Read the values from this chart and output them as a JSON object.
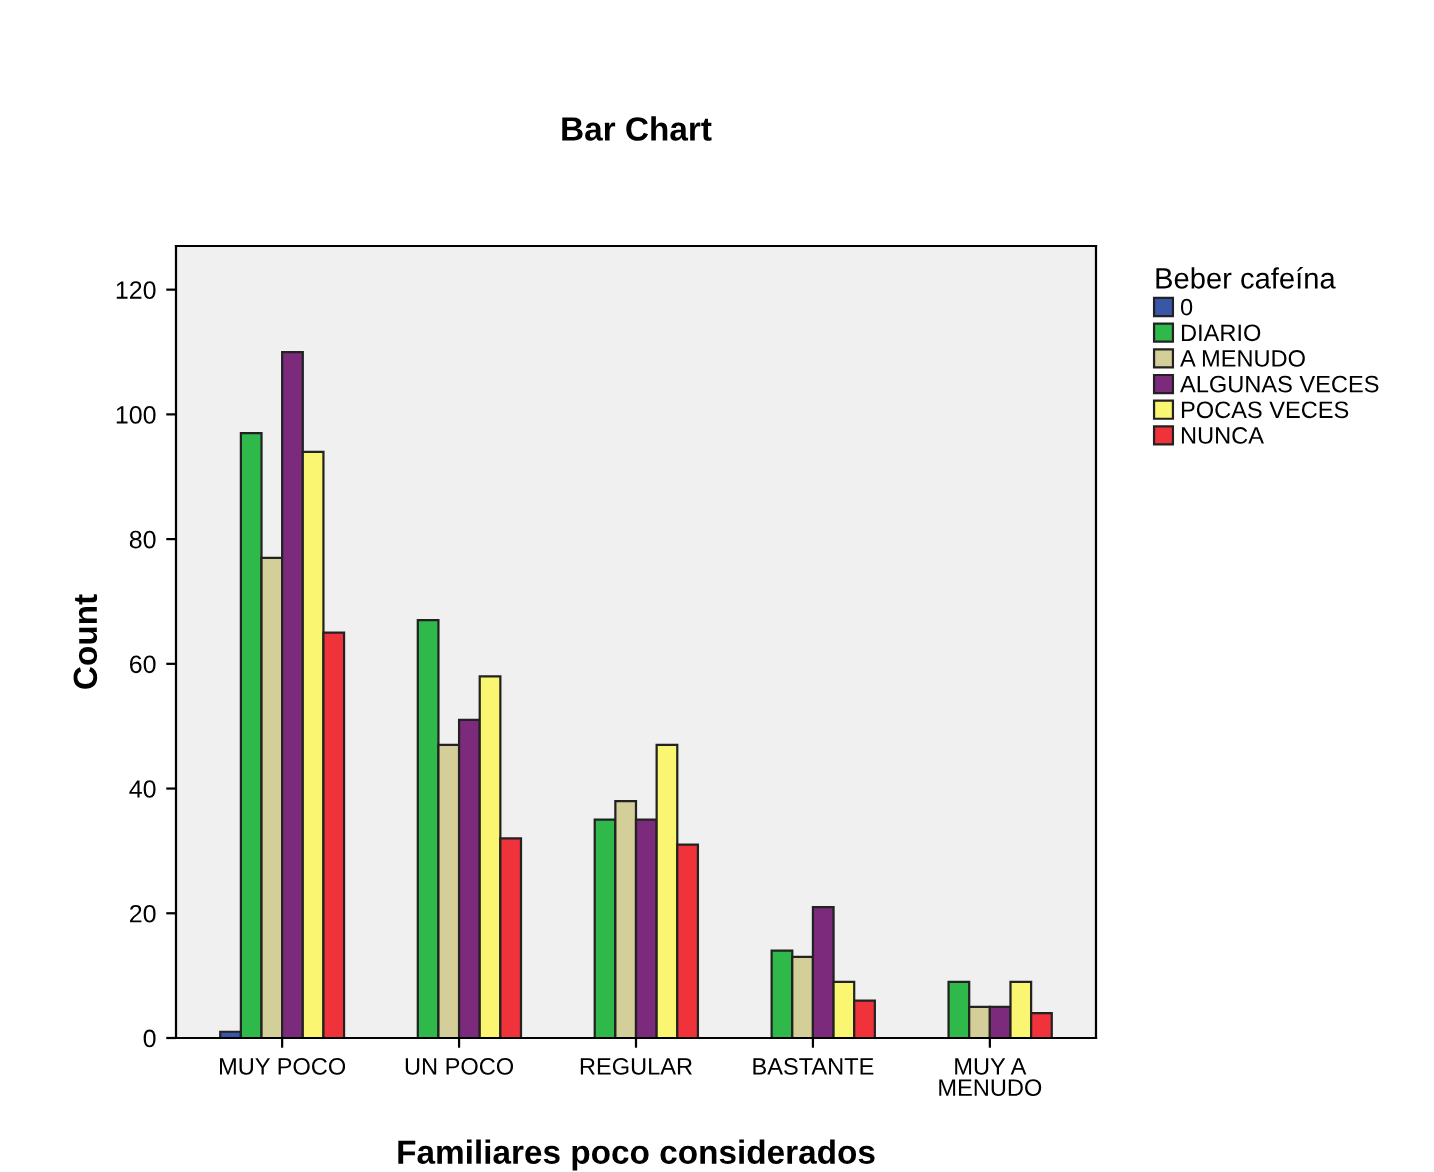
{
  "chart_data": {
    "type": "bar",
    "title": "Bar Chart",
    "xlabel": "Familiares poco considerados",
    "ylabel": "Count",
    "legend_title": "Beber cafeína",
    "legend": "right",
    "categories": [
      "MUY POCO",
      "UN POCO",
      "REGULAR",
      "BASTANTE",
      "MUY A\nMENUDO"
    ],
    "series": [
      {
        "name": "0",
        "color": "#3a56a8",
        "values": [
          1,
          null,
          null,
          null,
          null
        ]
      },
      {
        "name": "DIARIO",
        "color": "#2fb94a",
        "values": [
          97,
          67,
          35,
          14,
          9
        ]
      },
      {
        "name": "A MENUDO",
        "color": "#d4cf98",
        "values": [
          77,
          47,
          38,
          13,
          5
        ]
      },
      {
        "name": "ALGUNAS VECES",
        "color": "#7c2a7c",
        "values": [
          110,
          51,
          35,
          21,
          5
        ]
      },
      {
        "name": "POCAS VECES",
        "color": "#faf672",
        "values": [
          94,
          58,
          47,
          9,
          9
        ]
      },
      {
        "name": "NUNCA",
        "color": "#f0323a",
        "values": [
          65,
          32,
          31,
          6,
          4
        ]
      }
    ],
    "ylim": [
      0,
      127
    ],
    "yticks": [
      0,
      20,
      40,
      60,
      80,
      100,
      120
    ],
    "grid": false
  }
}
